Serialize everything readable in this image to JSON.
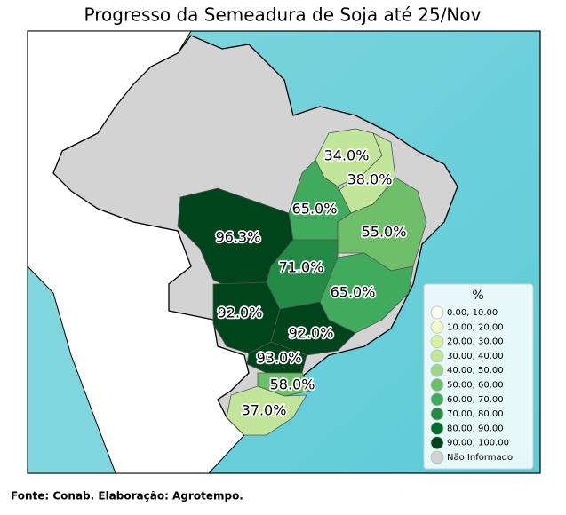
{
  "title": "Progresso da Semeadura de Soja até 25/Nov",
  "regions": [
    {
      "label": "34.0%",
      "color": "#c2e699"
    },
    {
      "label": "38.0%",
      "color": "#c2e699"
    },
    {
      "label": "65.0%",
      "color": "#41ab5d"
    },
    {
      "label": "55.0%",
      "color": "#6fbf6a"
    },
    {
      "label": "96.3%",
      "color": "#00441b"
    },
    {
      "label": "71.0%",
      "color": "#238b45"
    },
    {
      "label": "65.0%",
      "color": "#41ab5d"
    },
    {
      "label": "92.0%",
      "color": "#00441b"
    },
    {
      "label": "92.0%",
      "color": "#00441b"
    },
    {
      "label": "93.0%",
      "color": "#00441b"
    },
    {
      "label": "58.0%",
      "color": "#6fbf6a"
    },
    {
      "label": "37.0%",
      "color": "#c2e699"
    }
  ],
  "legend": {
    "title": "%",
    "items": [
      {
        "label": "0.00,  10.00",
        "color": "#fbfdf0"
      },
      {
        "label": "10.00,  20.00",
        "color": "#f1f9c8"
      },
      {
        "label": "20.00,  30.00",
        "color": "#d9f0a3"
      },
      {
        "label": "30.00,  40.00",
        "color": "#c2e699"
      },
      {
        "label": "40.00,  50.00",
        "color": "#9fd58a"
      },
      {
        "label": "50.00,  60.00",
        "color": "#6fbf6a"
      },
      {
        "label": "60.00,  70.00",
        "color": "#41ab5d"
      },
      {
        "label": "70.00,  80.00",
        "color": "#238b45"
      },
      {
        "label": "80.00,  90.00",
        "color": "#006d2c"
      },
      {
        "label": "90.00, 100.00",
        "color": "#00441b"
      },
      {
        "label": "Não Informado",
        "color": "#d3d3d3"
      }
    ]
  },
  "source": "Fonte: Conab. Elaboração: Agrotempo."
}
